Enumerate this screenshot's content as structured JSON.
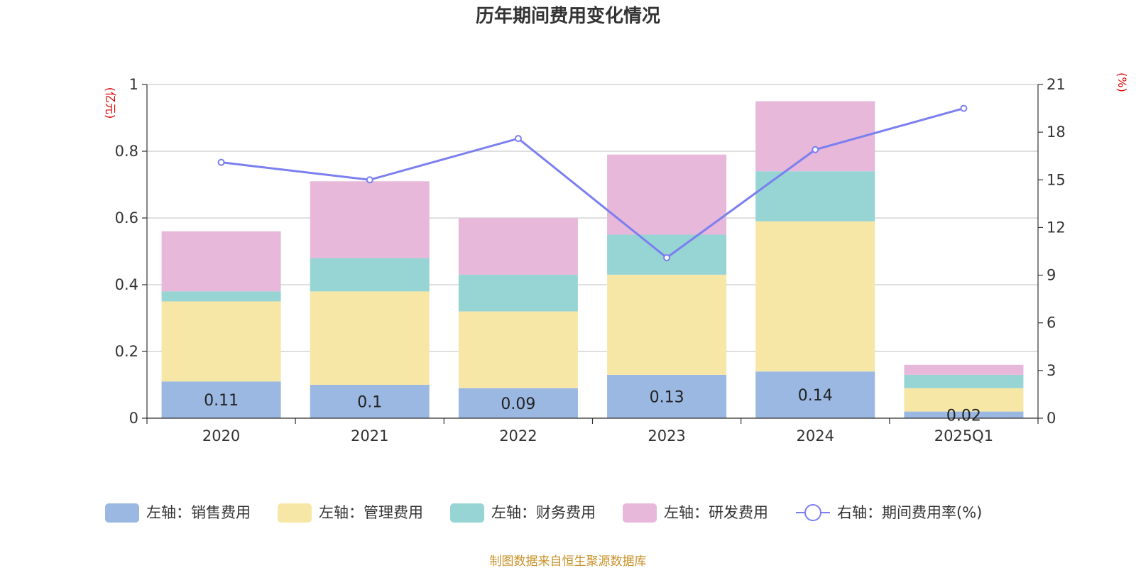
{
  "chart_data": {
    "type": "bar",
    "title": "历年期间费用变化情况",
    "categories": [
      "2020",
      "2021",
      "2022",
      "2023",
      "2024",
      "2025Q1"
    ],
    "series": [
      {
        "name": "左轴：销售费用",
        "axis": "left",
        "type": "bar",
        "color": "#9bb8e2",
        "values": [
          0.11,
          0.1,
          0.09,
          0.13,
          0.14,
          0.02
        ],
        "labels": [
          "0.11",
          "0.1",
          "0.09",
          "0.13",
          "0.14",
          "0.02"
        ]
      },
      {
        "name": "左轴：管理费用",
        "axis": "left",
        "type": "bar",
        "color": "#f7e7a6",
        "values": [
          0.24,
          0.28,
          0.23,
          0.3,
          0.45,
          0.07
        ]
      },
      {
        "name": "左轴：财务费用",
        "axis": "left",
        "type": "bar",
        "color": "#97d4d4",
        "values": [
          0.03,
          0.1,
          0.11,
          0.12,
          0.15,
          0.04
        ]
      },
      {
        "name": "左轴：研发费用",
        "axis": "left",
        "type": "bar",
        "color": "#e7b8d9",
        "values": [
          0.18,
          0.23,
          0.17,
          0.24,
          0.21,
          0.03
        ]
      },
      {
        "name": "右轴：期间费用率(%)",
        "axis": "right",
        "type": "line",
        "color": "#7b7ff0",
        "values": [
          16.1,
          15.0,
          17.6,
          10.1,
          16.9,
          19.5
        ]
      }
    ],
    "left_axis": {
      "unit": "(亿元)",
      "ylim": [
        0,
        1
      ],
      "ticks": [
        "0",
        "0.2",
        "0.4",
        "0.6",
        "0.8",
        "1"
      ]
    },
    "right_axis": {
      "unit": "(%)",
      "ylim": [
        0,
        21
      ],
      "ticks": [
        "0",
        "3",
        "6",
        "9",
        "12",
        "15",
        "18",
        "21"
      ]
    },
    "grid": true,
    "legend_position": "bottom",
    "source": "制图数据来自恒生聚源数据库"
  }
}
